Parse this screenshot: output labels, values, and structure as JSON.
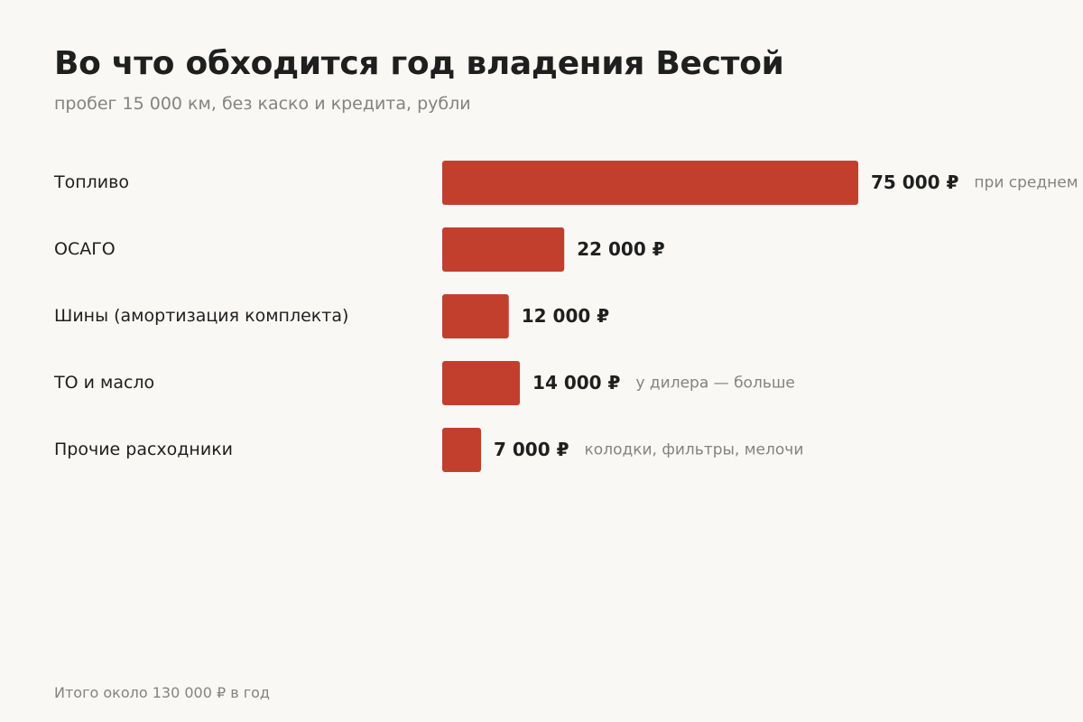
{
  "chart_data": {
    "type": "bar",
    "orientation": "horizontal",
    "title": "Во что обходится год владения Вестой",
    "subtitle": "пробег 15 000 км, без каско и кредита, рубли",
    "categories": [
      "Топливо",
      "ОСАГО",
      "Шины (амортизация комплекта)",
      "ТО и масло",
      "Прочие расходники"
    ],
    "values": [
      75000,
      22000,
      12000,
      14000,
      7000
    ],
    "value_labels": [
      "75 000 ₽",
      "22 000 ₽",
      "12 000 ₽",
      "14 000 ₽",
      "7 000 ₽"
    ],
    "notes": [
      "при среднем р",
      "",
      "",
      "у дилера — больше",
      "колодки, фильтры, мелочи"
    ],
    "xlim": [
      0,
      75000
    ],
    "grid": false,
    "bar_color": "#c23f2e",
    "footer": "Итого около 130 000 ₽ в год"
  }
}
